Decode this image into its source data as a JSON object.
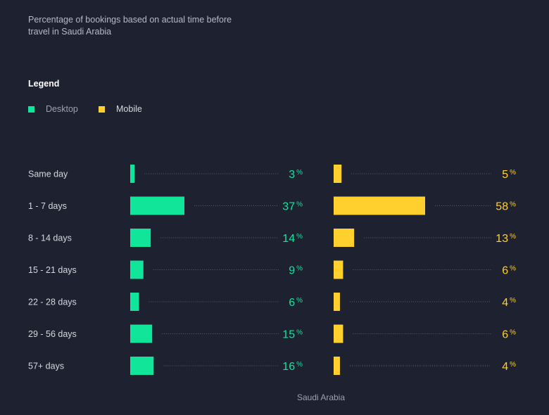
{
  "colors": {
    "background": "#1e2230",
    "desktop": "#10e59a",
    "mobile": "#ffd02e",
    "category_text": "#d5d7dd",
    "dots": "#5a5f6e"
  },
  "title": "Percentage of bookings based on actual time before travel in Saudi Arabia",
  "legend": {
    "title": "Legend",
    "desktop_label": "Desktop",
    "mobile_label": "Mobile"
  },
  "footer_label": "Saudi Arabia",
  "chart_data": {
    "type": "bar",
    "orientation": "horizontal",
    "categories": [
      "Same day",
      "1 - 7 days",
      "8 - 14 days",
      "15 - 21 days",
      "22 - 28 days",
      "29 - 56 days",
      "57+ days"
    ],
    "series": [
      {
        "name": "Desktop",
        "values": [
          3,
          37,
          14,
          9,
          6,
          15,
          16
        ]
      },
      {
        "name": "Mobile",
        "values": [
          5,
          58,
          13,
          6,
          4,
          6,
          4
        ]
      }
    ],
    "unit": "%",
    "xlabel": "Saudi Arabia"
  }
}
